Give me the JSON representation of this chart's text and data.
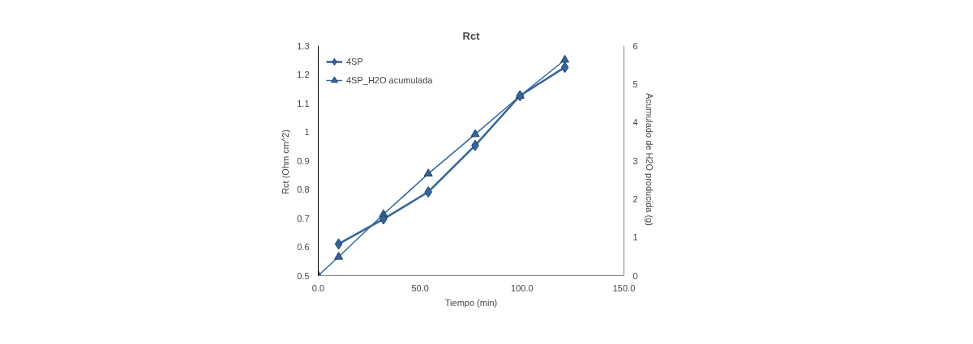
{
  "chart_data": {
    "type": "line",
    "title": "Rct",
    "xlabel": "Tiempo (min)",
    "ylabel": "Rct  (Ohm cm^2)",
    "y2label": "Acumulado de H2O producida  (g)",
    "xlim": [
      0,
      150
    ],
    "xticks": [
      {
        "value": 0,
        "label": "0.0"
      },
      {
        "value": 50,
        "label": "50.0"
      },
      {
        "value": 100,
        "label": "100.0"
      },
      {
        "value": 150,
        "label": "150.0"
      }
    ],
    "ylim": [
      0.5,
      1.3
    ],
    "yticks": [
      0.5,
      0.6,
      0.7,
      0.8,
      0.9,
      1,
      1.1,
      1.2,
      1.3
    ],
    "y2lim": [
      0,
      6
    ],
    "y2ticks": [
      0,
      1,
      2,
      3,
      4,
      5,
      6
    ],
    "grid": false,
    "legend": "top left",
    "series": [
      {
        "name": "4SP",
        "color": "#34659b",
        "marker": "diamond",
        "x": [
          10,
          32,
          54,
          77,
          99,
          121
        ],
        "values": [
          0.61,
          0.697,
          0.791,
          0.953,
          1.126,
          1.225
        ]
      },
      {
        "name": "4SP_H2O acumulada",
        "color": "#34659b",
        "marker": "triangle",
        "axis": "y2",
        "x": [
          0,
          10,
          32,
          54,
          77,
          99,
          121
        ],
        "values": [
          0,
          0.49,
          1.6,
          2.66,
          3.69,
          4.69,
          5.63
        ]
      }
    ]
  }
}
